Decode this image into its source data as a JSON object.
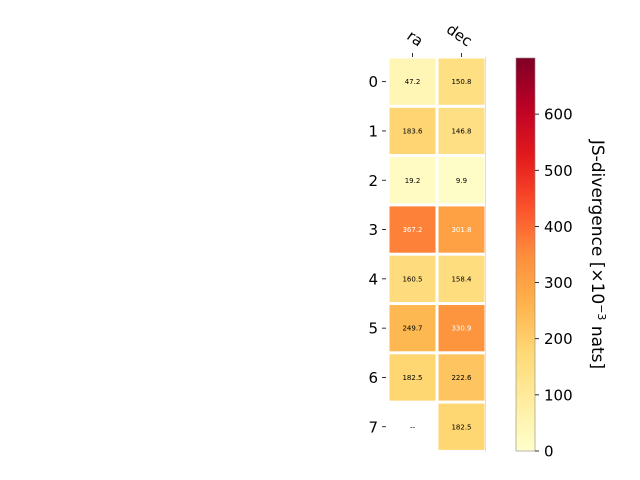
{
  "chart_data": {
    "type": "heatmap",
    "columns": [
      "ra",
      "dec"
    ],
    "rows": [
      "0",
      "1",
      "2",
      "3",
      "4",
      "5",
      "6",
      "7"
    ],
    "values": [
      [
        47.2,
        150.8
      ],
      [
        183.6,
        146.8
      ],
      [
        19.2,
        9.9
      ],
      [
        367.2,
        301.8
      ],
      [
        160.5,
        158.4
      ],
      [
        249.7,
        330.9
      ],
      [
        182.5,
        222.6
      ],
      [
        null,
        182.5
      ]
    ],
    "cell_labels": [
      [
        "47.2",
        "150.8"
      ],
      [
        "183.6",
        "146.8"
      ],
      [
        "19.2",
        "9.9"
      ],
      [
        "367.2",
        "301.8"
      ],
      [
        "160.5",
        "158.4"
      ],
      [
        "249.7",
        "330.9"
      ],
      [
        "182.5",
        "222.6"
      ],
      [
        "--",
        "182.5"
      ]
    ],
    "colorbar": {
      "label": "JS-divergence [×10",
      "label_exponent": "−3",
      "label_suffix": " nats]",
      "range": [
        0,
        700
      ],
      "ticks": [
        "0",
        "100",
        "200",
        "300",
        "400",
        "500",
        "600"
      ],
      "colormap": "YlOrRd"
    }
  }
}
